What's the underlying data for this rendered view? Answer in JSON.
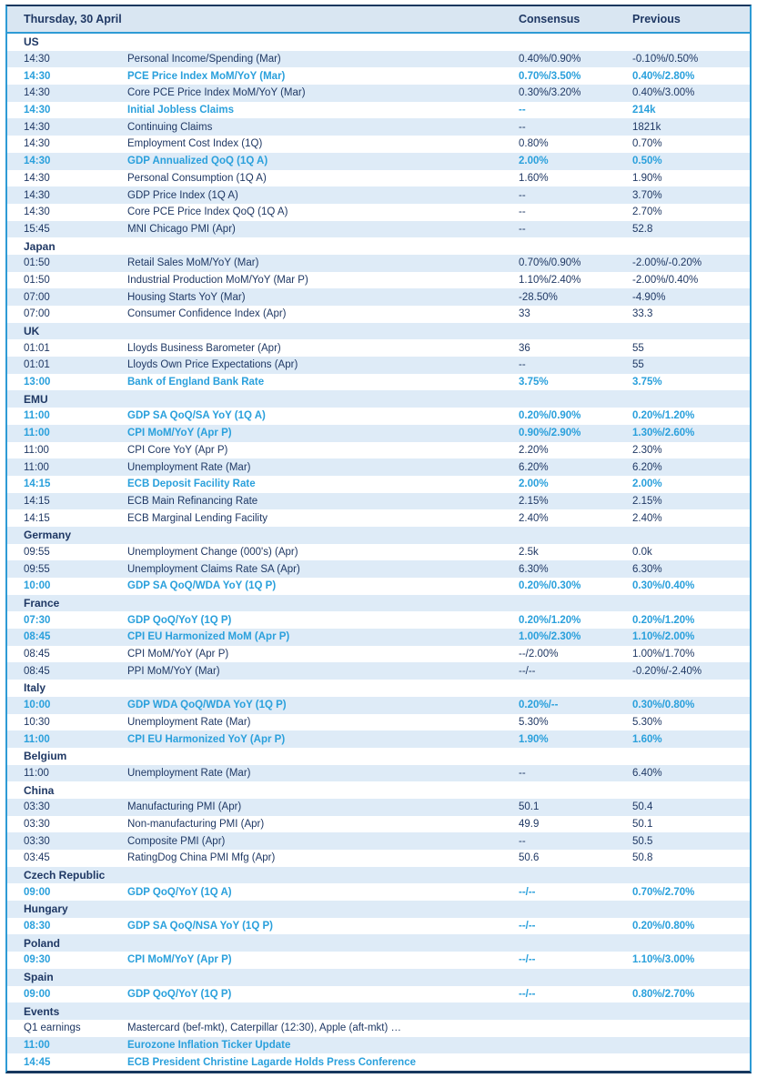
{
  "header": {
    "date": "Thursday, 30 April",
    "consensus_label": "Consensus",
    "previous_label": "Previous"
  },
  "colors": {
    "navy": "#1F3864",
    "accent": "#2AA0DC",
    "row_blue": "#DEEBF7",
    "header_bg": "#D9E6F2",
    "border_cyan": "#2E9BD5",
    "border_dark": "#17375E"
  },
  "sections": [
    {
      "name": "US",
      "rows": [
        {
          "time": "14:30",
          "event": "Personal Income/Spending (Mar)",
          "consensus": "0.40%/0.90%",
          "previous": "-0.10%/0.50%",
          "highlight": false
        },
        {
          "time": "14:30",
          "event": "PCE Price Index MoM/YoY (Mar)",
          "consensus": "0.70%/3.50%",
          "previous": "0.40%/2.80%",
          "highlight": true
        },
        {
          "time": "14:30",
          "event": "Core PCE Price Index MoM/YoY (Mar)",
          "consensus": "0.30%/3.20%",
          "previous": "0.40%/3.00%",
          "highlight": false
        },
        {
          "time": "14:30",
          "event": "Initial Jobless Claims",
          "consensus": "--",
          "previous": "214k",
          "highlight": true
        },
        {
          "time": "14:30",
          "event": "Continuing Claims",
          "consensus": "--",
          "previous": "1821k",
          "highlight": false
        },
        {
          "time": "14:30",
          "event": "Employment Cost Index (1Q)",
          "consensus": "0.80%",
          "previous": "0.70%",
          "highlight": false
        },
        {
          "time": "14:30",
          "event": "GDP Annualized QoQ (1Q A)",
          "consensus": "2.00%",
          "previous": "0.50%",
          "highlight": true
        },
        {
          "time": "14:30",
          "event": "Personal Consumption (1Q A)",
          "consensus": "1.60%",
          "previous": "1.90%",
          "highlight": false
        },
        {
          "time": "14:30",
          "event": "GDP Price Index (1Q A)",
          "consensus": "--",
          "previous": "3.70%",
          "highlight": false
        },
        {
          "time": "14:30",
          "event": "Core PCE Price Index QoQ (1Q A)",
          "consensus": "--",
          "previous": "2.70%",
          "highlight": false
        },
        {
          "time": "15:45",
          "event": "MNI Chicago PMI (Apr)",
          "consensus": "--",
          "previous": "52.8",
          "highlight": false
        }
      ]
    },
    {
      "name": "Japan",
      "rows": [
        {
          "time": "01:50",
          "event": "Retail Sales MoM/YoY (Mar)",
          "consensus": "0.70%/0.90%",
          "previous": "-2.00%/-0.20%",
          "highlight": false
        },
        {
          "time": "01:50",
          "event": "Industrial Production MoM/YoY (Mar P)",
          "consensus": "1.10%/2.40%",
          "previous": "-2.00%/0.40%",
          "highlight": false
        },
        {
          "time": "07:00",
          "event": "Housing Starts YoY (Mar)",
          "consensus": "-28.50%",
          "previous": "-4.90%",
          "highlight": false
        },
        {
          "time": "07:00",
          "event": "Consumer Confidence Index (Apr)",
          "consensus": "33",
          "previous": "33.3",
          "highlight": false
        }
      ]
    },
    {
      "name": "UK",
      "rows": [
        {
          "time": "01:01",
          "event": "Lloyds Business Barometer (Apr)",
          "consensus": "36",
          "previous": "55",
          "highlight": false
        },
        {
          "time": "01:01",
          "event": "Lloyds Own Price Expectations (Apr)",
          "consensus": "--",
          "previous": "55",
          "highlight": false
        },
        {
          "time": "13:00",
          "event": "Bank of England Bank Rate",
          "consensus": "3.75%",
          "previous": "3.75%",
          "highlight": true
        }
      ]
    },
    {
      "name": "EMU",
      "rows": [
        {
          "time": "11:00",
          "event": "GDP SA QoQ/SA YoY (1Q A)",
          "consensus": "0.20%/0.90%",
          "previous": "0.20%/1.20%",
          "highlight": true
        },
        {
          "time": "11:00",
          "event": "CPI MoM/YoY (Apr P)",
          "consensus": "0.90%/2.90%",
          "previous": "1.30%/2.60%",
          "highlight": true
        },
        {
          "time": "11:00",
          "event": "CPI Core YoY (Apr P)",
          "consensus": "2.20%",
          "previous": "2.30%",
          "highlight": false
        },
        {
          "time": "11:00",
          "event": "Unemployment Rate (Mar)",
          "consensus": "6.20%",
          "previous": "6.20%",
          "highlight": false
        },
        {
          "time": "14:15",
          "event": "ECB Deposit Facility Rate",
          "consensus": "2.00%",
          "previous": "2.00%",
          "highlight": true
        },
        {
          "time": "14:15",
          "event": "ECB Main Refinancing Rate",
          "consensus": "2.15%",
          "previous": "2.15%",
          "highlight": false
        },
        {
          "time": "14:15",
          "event": "ECB Marginal Lending Facility",
          "consensus": "2.40%",
          "previous": "2.40%",
          "highlight": false
        }
      ]
    },
    {
      "name": "Germany",
      "rows": [
        {
          "time": "09:55",
          "event": "Unemployment Change (000's) (Apr)",
          "consensus": "2.5k",
          "previous": "0.0k",
          "highlight": false
        },
        {
          "time": "09:55",
          "event": "Unemployment Claims Rate SA (Apr)",
          "consensus": "6.30%",
          "previous": "6.30%",
          "highlight": false
        },
        {
          "time": "10:00",
          "event": "GDP SA QoQ/WDA YoY (1Q P)",
          "consensus": "0.20%/0.30%",
          "previous": "0.30%/0.40%",
          "highlight": true
        }
      ]
    },
    {
      "name": "France",
      "rows": [
        {
          "time": "07:30",
          "event": "GDP QoQ/YoY (1Q P)",
          "consensus": "0.20%/1.20%",
          "previous": "0.20%/1.20%",
          "highlight": true
        },
        {
          "time": "08:45",
          "event": "CPI EU Harmonized MoM (Apr P)",
          "consensus": "1.00%/2.30%",
          "previous": "1.10%/2.00%",
          "highlight": true
        },
        {
          "time": "08:45",
          "event": "CPI MoM/YoY (Apr P)",
          "consensus": "--/2.00%",
          "previous": "1.00%/1.70%",
          "highlight": false
        },
        {
          "time": "08:45",
          "event": "PPI MoM/YoY (Mar)",
          "consensus": "--/--",
          "previous": "-0.20%/-2.40%",
          "highlight": false
        }
      ]
    },
    {
      "name": "Italy",
      "rows": [
        {
          "time": "10:00",
          "event": "GDP WDA QoQ/WDA YoY (1Q P)",
          "consensus": "0.20%/--",
          "previous": "0.30%/0.80%",
          "highlight": true
        },
        {
          "time": "10:30",
          "event": "Unemployment Rate (Mar)",
          "consensus": "5.30%",
          "previous": "5.30%",
          "highlight": false
        },
        {
          "time": "11:00",
          "event": "CPI EU Harmonized YoY (Apr P)",
          "consensus": "1.90%",
          "previous": "1.60%",
          "highlight": true
        }
      ]
    },
    {
      "name": "Belgium",
      "rows": [
        {
          "time": "11:00",
          "event": "Unemployment Rate (Mar)",
          "consensus": "--",
          "previous": "6.40%",
          "highlight": false
        }
      ]
    },
    {
      "name": "China",
      "rows": [
        {
          "time": "03:30",
          "event": "Manufacturing PMI (Apr)",
          "consensus": "50.1",
          "previous": "50.4",
          "highlight": false
        },
        {
          "time": "03:30",
          "event": "Non-manufacturing PMI (Apr)",
          "consensus": "49.9",
          "previous": "50.1",
          "highlight": false
        },
        {
          "time": "03:30",
          "event": "Composite PMI (Apr)",
          "consensus": "--",
          "previous": "50.5",
          "highlight": false
        },
        {
          "time": "03:45",
          "event": "RatingDog China PMI Mfg (Apr)",
          "consensus": "50.6",
          "previous": "50.8",
          "highlight": false
        }
      ]
    },
    {
      "name": "Czech Republic",
      "rows": [
        {
          "time": "09:00",
          "event": "GDP QoQ/YoY (1Q A)",
          "consensus": "--/--",
          "previous": "0.70%/2.70%",
          "highlight": true
        }
      ]
    },
    {
      "name": "Hungary",
      "rows": [
        {
          "time": "08:30",
          "event": "GDP SA QoQ/NSA YoY (1Q P)",
          "consensus": "--/--",
          "previous": "0.20%/0.80%",
          "highlight": true
        }
      ]
    },
    {
      "name": "Poland",
      "rows": [
        {
          "time": "09:30",
          "event": "CPI MoM/YoY (Apr P)",
          "consensus": "--/--",
          "previous": "1.10%/3.00%",
          "highlight": true
        }
      ]
    },
    {
      "name": "Spain",
      "rows": [
        {
          "time": "09:00",
          "event": "GDP QoQ/YoY (1Q P)",
          "consensus": "--/--",
          "previous": "0.80%/2.70%",
          "highlight": true
        }
      ]
    },
    {
      "name": "Events",
      "rows": [
        {
          "time": "Q1 earnings",
          "event": "Mastercard (bef-mkt), Caterpillar (12:30), Apple (aft-mkt) …",
          "consensus": "",
          "previous": "",
          "highlight": false
        },
        {
          "time": "11:00",
          "event": "Eurozone Inflation Ticker Update",
          "consensus": "",
          "previous": "",
          "highlight": true
        },
        {
          "time": "14:45",
          "event": "ECB President Christine Lagarde Holds Press Conference",
          "consensus": "",
          "previous": "",
          "highlight": true
        }
      ]
    }
  ]
}
